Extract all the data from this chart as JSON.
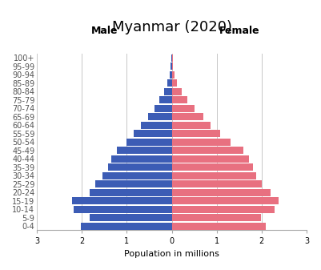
{
  "title": "Myanmar (2020)",
  "xlabel": "Population in millions",
  "male_label": "Male",
  "female_label": "Female",
  "age_groups": [
    "0-4",
    "5-9",
    "10-14",
    "15-19",
    "20-24",
    "25-29",
    "30-34",
    "35-39",
    "40-44",
    "45-49",
    "50-54",
    "55-59",
    "60-64",
    "65-69",
    "70-74",
    "75-79",
    "80-84",
    "85-89",
    "90-94",
    "95-99",
    "100+"
  ],
  "male_values": [
    2.02,
    1.82,
    2.18,
    2.22,
    1.82,
    1.7,
    1.55,
    1.41,
    1.35,
    1.22,
    1.0,
    0.84,
    0.68,
    0.52,
    0.38,
    0.27,
    0.17,
    0.09,
    0.05,
    0.02,
    0.01
  ],
  "female_values": [
    2.1,
    1.98,
    2.28,
    2.38,
    2.2,
    2.0,
    1.88,
    1.8,
    1.72,
    1.6,
    1.3,
    1.08,
    0.87,
    0.7,
    0.5,
    0.34,
    0.22,
    0.12,
    0.07,
    0.03,
    0.02
  ],
  "male_color": "#3C5CB5",
  "female_color": "#E87080",
  "xlim": 3.0,
  "grid_color": "#c8c8c8",
  "background_color": "#ffffff",
  "title_fontsize": 13,
  "axis_label_fontsize": 8,
  "tick_fontsize": 7,
  "header_fontsize": 9,
  "bar_height": 0.85
}
